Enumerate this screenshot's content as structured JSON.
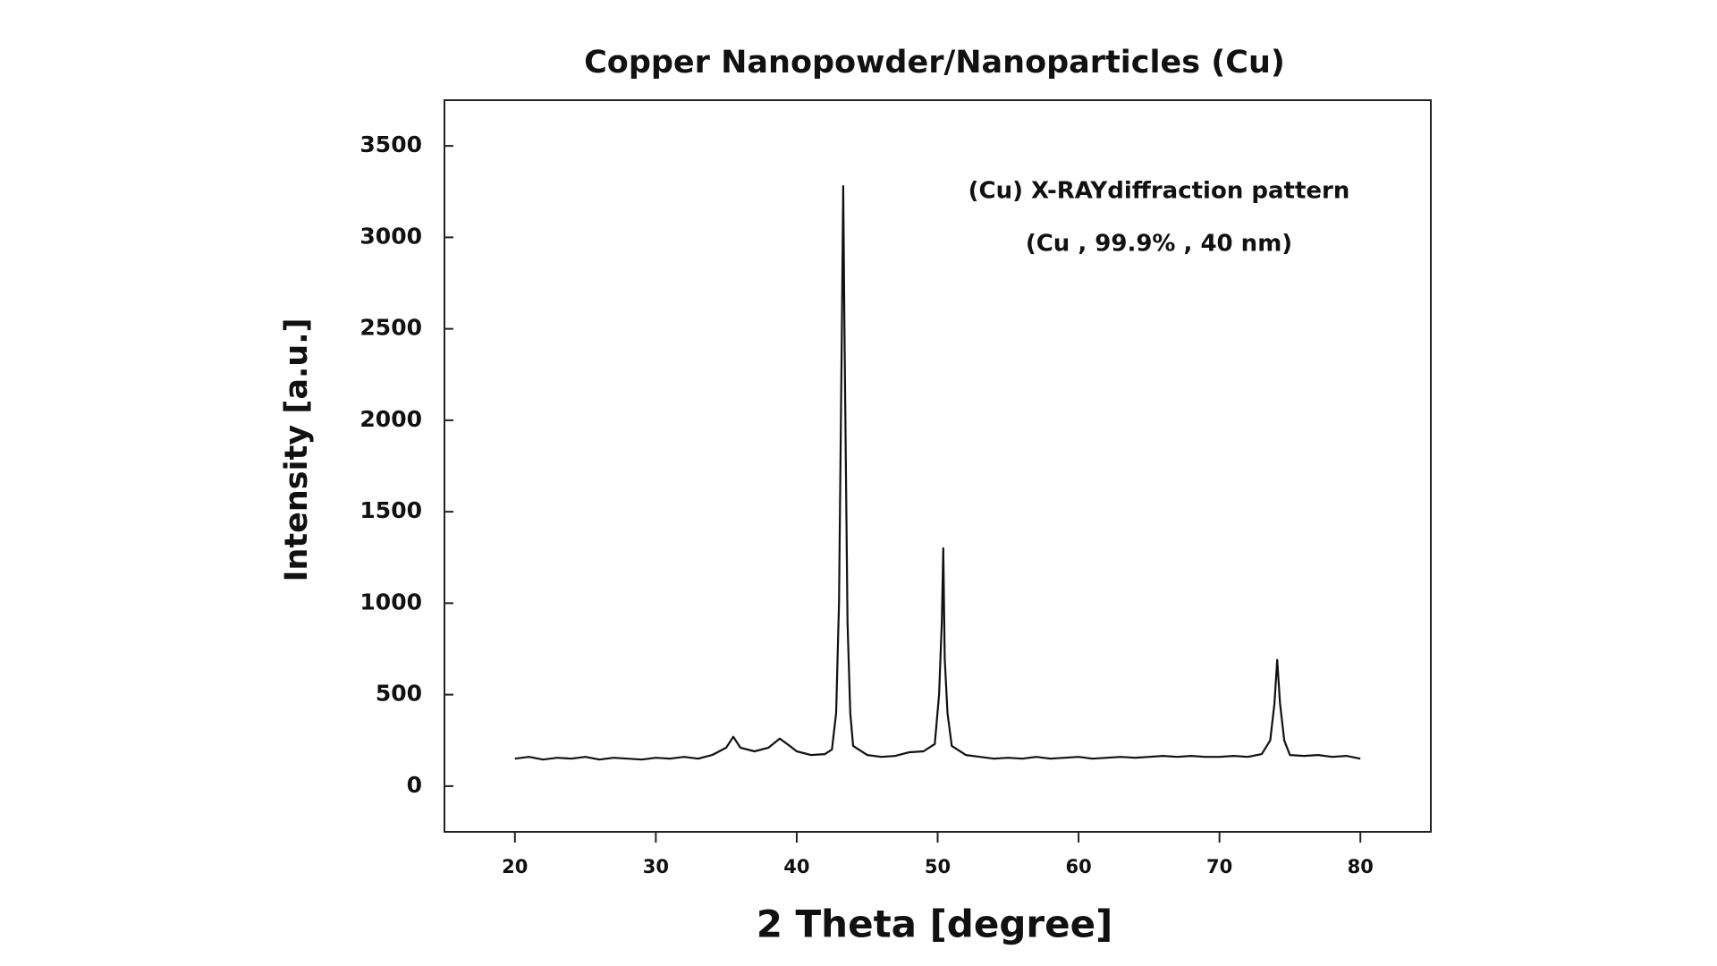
{
  "chart_data": {
    "type": "line",
    "title": "Copper Nanopowder/Nanoparticles  (Cu)",
    "annotations": [
      "(Cu) X-RAYdiffraction pattern",
      "(Cu , 99.9% , 40 nm)"
    ],
    "x_label": "2 Theta [degree]",
    "y_label": "Intensity [a.u.]",
    "xlim": [
      15,
      85
    ],
    "ylim": [
      -250,
      3750
    ],
    "xticks": [
      20,
      30,
      40,
      50,
      60,
      70,
      80
    ],
    "yticks": [
      0,
      500,
      1000,
      1500,
      2000,
      2500,
      3000,
      3500
    ],
    "grid": false,
    "series": [
      {
        "color": "#111111",
        "x": [
          20,
          21,
          22,
          23,
          24,
          25,
          26,
          27,
          28,
          29,
          30,
          31,
          32,
          33,
          34,
          35,
          35.5,
          36,
          37,
          38,
          38.8,
          39.5,
          40,
          41,
          42,
          42.5,
          42.8,
          43,
          43.2,
          43.3,
          43.4,
          43.6,
          43.8,
          44,
          45,
          46,
          47,
          48,
          49,
          49.8,
          50.1,
          50.3,
          50.4,
          50.5,
          50.7,
          51,
          52,
          53,
          54,
          55,
          56,
          57,
          58,
          59,
          60,
          61,
          62,
          63,
          64,
          65,
          66,
          67,
          68,
          69,
          70,
          71,
          72,
          73,
          73.6,
          73.9,
          74.1,
          74.3,
          74.6,
          75,
          76,
          77,
          78,
          79,
          80
        ],
        "values": [
          150,
          160,
          145,
          155,
          150,
          160,
          145,
          155,
          150,
          145,
          155,
          150,
          160,
          150,
          170,
          210,
          270,
          210,
          190,
          210,
          260,
          220,
          190,
          170,
          175,
          200,
          400,
          1000,
          2500,
          3280,
          2400,
          900,
          400,
          220,
          170,
          160,
          165,
          185,
          190,
          230,
          500,
          900,
          1300,
          700,
          400,
          220,
          170,
          160,
          150,
          155,
          150,
          160,
          150,
          155,
          160,
          150,
          155,
          160,
          155,
          160,
          165,
          160,
          165,
          160,
          160,
          165,
          160,
          175,
          250,
          450,
          690,
          450,
          250,
          170,
          165,
          170,
          160,
          165,
          150
        ]
      }
    ]
  }
}
